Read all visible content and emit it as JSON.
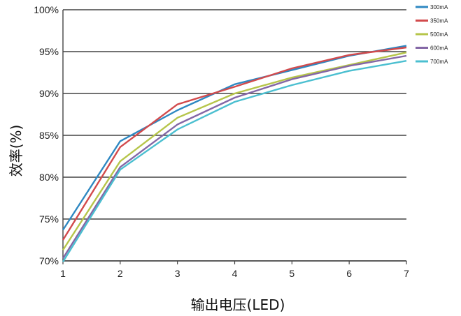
{
  "chart_data": {
    "type": "line",
    "x": [
      1,
      2,
      3,
      4,
      5,
      6,
      7
    ],
    "xlabel": "输出电压(LED)",
    "ylabel": "效率(%)",
    "xlim": [
      1,
      7
    ],
    "ylim": [
      70,
      100
    ],
    "x_ticks": [
      "1",
      "2",
      "3",
      "4",
      "5",
      "6",
      "7"
    ],
    "y_ticks": [
      "70%",
      "75%",
      "80%",
      "85%",
      "90%",
      "95%",
      "100%"
    ],
    "grid": true,
    "legend_position": "top-right",
    "series": [
      {
        "name": "300mA",
        "color": "#2e88c2",
        "values": [
          73.7,
          84.3,
          88.0,
          91.1,
          92.8,
          94.5,
          95.7
        ]
      },
      {
        "name": "350mA",
        "color": "#d24a4c",
        "values": [
          72.5,
          83.6,
          88.7,
          90.8,
          93.0,
          94.6,
          95.5
        ]
      },
      {
        "name": "500mA",
        "color": "#b6c54a",
        "values": [
          71.3,
          81.9,
          87.1,
          90.0,
          91.9,
          93.4,
          94.9
        ]
      },
      {
        "name": "600mA",
        "color": "#8467a6",
        "values": [
          70.3,
          81.2,
          86.3,
          89.5,
          91.7,
          93.3,
          94.5
        ]
      },
      {
        "name": "700mA",
        "color": "#4bbfd0",
        "values": [
          69.9,
          80.9,
          85.7,
          89.0,
          91.0,
          92.7,
          93.9
        ]
      }
    ]
  }
}
